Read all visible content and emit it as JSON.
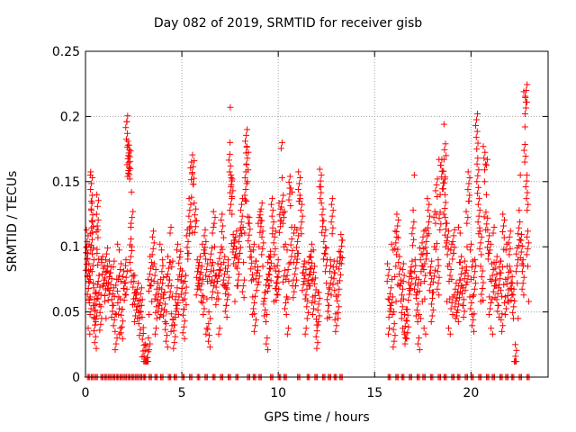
{
  "chart_data": {
    "type": "scatter",
    "title": "Day 082 of 2019, SRMTID for receiver gisb",
    "xlabel": "GPS time / hours",
    "ylabel": "SRMTID / TECUs",
    "xlim": [
      0,
      24
    ],
    "ylim": [
      0,
      0.25
    ],
    "x_ticks": [
      0,
      5,
      10,
      15,
      20
    ],
    "y_ticks": [
      0,
      0.05,
      0.1,
      0.15,
      0.2,
      0.25
    ],
    "x_tick_labels": [
      "0",
      "5",
      "10",
      "15",
      "20"
    ],
    "y_tick_labels": [
      "0",
      "0.05",
      "0.1",
      "0.15",
      "0.2",
      "0.25"
    ],
    "grid": true,
    "marker": "+",
    "color": "#ff0000",
    "series": [
      {
        "name": "SRMTID",
        "points": [
          [
            0.05,
            0.082
          ],
          [
            0.1,
            0.095
          ],
          [
            0.15,
            0.068
          ],
          [
            0.2,
            0.06
          ],
          [
            0.25,
            0.075
          ],
          [
            0.3,
            0.128
          ],
          [
            0.32,
            0.135
          ],
          [
            0.35,
            0.12
          ],
          [
            0.4,
            0.072
          ],
          [
            0.45,
            0.055
          ],
          [
            0.5,
            0.04
          ],
          [
            0.55,
            0.065
          ],
          [
            0.6,
            0.098
          ],
          [
            0.65,
            0.113
          ],
          [
            0.7,
            0.078
          ],
          [
            0.8,
            0.063
          ],
          [
            0.9,
            0.07
          ],
          [
            1.0,
            0.058
          ],
          [
            1.1,
            0.072
          ],
          [
            1.2,
            0.068
          ],
          [
            1.3,
            0.08
          ],
          [
            1.4,
            0.055
          ],
          [
            1.5,
            0.062
          ],
          [
            1.6,
            0.048
          ],
          [
            1.7,
            0.075
          ],
          [
            1.8,
            0.06
          ],
          [
            1.9,
            0.052
          ],
          [
            2.0,
            0.068
          ],
          [
            2.1,
            0.09
          ],
          [
            2.15,
            0.196
          ],
          [
            2.2,
            0.181
          ],
          [
            2.25,
            0.17
          ],
          [
            2.3,
            0.16
          ],
          [
            2.35,
            0.115
          ],
          [
            2.4,
            0.1
          ],
          [
            2.5,
            0.078
          ],
          [
            2.6,
            0.065
          ],
          [
            2.7,
            0.045
          ],
          [
            2.8,
            0.032
          ],
          [
            2.9,
            0.055
          ],
          [
            3.0,
            0.038
          ],
          [
            3.1,
            0.025
          ],
          [
            3.2,
            0.015
          ],
          [
            3.3,
            0.048
          ],
          [
            3.4,
            0.07
          ],
          [
            3.5,
            0.085
          ],
          [
            3.6,
            0.06
          ],
          [
            3.7,
            0.045
          ],
          [
            3.8,
            0.055
          ],
          [
            3.9,
            0.075
          ],
          [
            4.0,
            0.09
          ],
          [
            4.1,
            0.065
          ],
          [
            4.2,
            0.05
          ],
          [
            4.3,
            0.07
          ],
          [
            4.4,
            0.088
          ],
          [
            4.5,
            0.062
          ],
          [
            4.6,
            0.04
          ],
          [
            4.7,
            0.055
          ],
          [
            4.8,
            0.075
          ],
          [
            4.9,
            0.092
          ],
          [
            5.0,
            0.068
          ],
          [
            5.1,
            0.052
          ],
          [
            5.2,
            0.078
          ],
          [
            5.3,
            0.095
          ],
          [
            5.4,
            0.11
          ],
          [
            5.5,
            0.138
          ],
          [
            5.6,
            0.148
          ],
          [
            5.7,
            0.12
          ],
          [
            5.8,
            0.09
          ],
          [
            5.9,
            0.07
          ],
          [
            6.0,
            0.058
          ],
          [
            6.1,
            0.075
          ],
          [
            6.2,
            0.095
          ],
          [
            6.3,
            0.06
          ],
          [
            6.4,
            0.05
          ],
          [
            6.5,
            0.072
          ],
          [
            6.6,
            0.088
          ],
          [
            6.7,
            0.1
          ],
          [
            6.8,
            0.078
          ],
          [
            6.9,
            0.06
          ],
          [
            7.0,
            0.082
          ],
          [
            7.1,
            0.098
          ],
          [
            7.2,
            0.07
          ],
          [
            7.3,
            0.055
          ],
          [
            7.4,
            0.09
          ],
          [
            7.5,
            0.18
          ],
          [
            7.55,
            0.155
          ],
          [
            7.6,
            0.125
          ],
          [
            7.7,
            0.105
          ],
          [
            7.8,
            0.085
          ],
          [
            7.9,
            0.07
          ],
          [
            8.0,
            0.095
          ],
          [
            8.1,
            0.11
          ],
          [
            8.2,
            0.088
          ],
          [
            8.3,
            0.135
          ],
          [
            8.35,
            0.163
          ],
          [
            8.4,
            0.15
          ],
          [
            8.5,
            0.118
          ],
          [
            8.6,
            0.092
          ],
          [
            8.7,
            0.075
          ],
          [
            8.8,
            0.062
          ],
          [
            8.9,
            0.08
          ],
          [
            9.0,
            0.1
          ],
          [
            9.1,
            0.12
          ],
          [
            9.2,
            0.085
          ],
          [
            9.3,
            0.065
          ],
          [
            9.4,
            0.048
          ],
          [
            9.5,
            0.07
          ],
          [
            9.6,
            0.092
          ],
          [
            9.7,
            0.11
          ],
          [
            9.8,
            0.085
          ],
          [
            9.9,
            0.068
          ],
          [
            10.0,
            0.09
          ],
          [
            10.1,
            0.12
          ],
          [
            10.2,
            0.153
          ],
          [
            10.3,
            0.1
          ],
          [
            10.4,
            0.075
          ],
          [
            10.5,
            0.06
          ],
          [
            10.6,
            0.145
          ],
          [
            10.7,
            0.115
          ],
          [
            10.8,
            0.088
          ],
          [
            10.9,
            0.07
          ],
          [
            11.0,
            0.095
          ],
          [
            11.1,
            0.135
          ],
          [
            11.2,
            0.11
          ],
          [
            11.3,
            0.08
          ],
          [
            11.4,
            0.06
          ],
          [
            11.5,
            0.045
          ],
          [
            11.6,
            0.07
          ],
          [
            11.7,
            0.092
          ],
          [
            11.8,
            0.075
          ],
          [
            11.9,
            0.058
          ],
          [
            12.0,
            0.04
          ],
          [
            12.1,
            0.065
          ],
          [
            12.2,
            0.146
          ],
          [
            12.3,
            0.12
          ],
          [
            12.4,
            0.095
          ],
          [
            12.5,
            0.072
          ],
          [
            12.6,
            0.055
          ],
          [
            12.7,
            0.09
          ],
          [
            12.8,
            0.11
          ],
          [
            12.9,
            0.08
          ],
          [
            13.0,
            0.062
          ],
          [
            13.1,
            0.045
          ],
          [
            13.2,
            0.092
          ],
          [
            13.3,
            0.105
          ],
          [
            15.7,
            0.06
          ],
          [
            15.8,
            0.055
          ],
          [
            15.9,
            0.075
          ],
          [
            16.0,
            0.05
          ],
          [
            16.1,
            0.085
          ],
          [
            16.2,
            0.098
          ],
          [
            16.3,
            0.07
          ],
          [
            16.4,
            0.045
          ],
          [
            16.5,
            0.06
          ],
          [
            16.6,
            0.03
          ],
          [
            16.7,
            0.052
          ],
          [
            16.8,
            0.068
          ],
          [
            16.9,
            0.08
          ],
          [
            17.0,
            0.128
          ],
          [
            17.1,
            0.09
          ],
          [
            17.2,
            0.065
          ],
          [
            17.3,
            0.048
          ],
          [
            17.4,
            0.072
          ],
          [
            17.5,
            0.085
          ],
          [
            17.6,
            0.06
          ],
          [
            17.7,
            0.095
          ],
          [
            17.8,
            0.11
          ],
          [
            17.9,
            0.08
          ],
          [
            18.0,
            0.065
          ],
          [
            18.1,
            0.1
          ],
          [
            18.2,
            0.125
          ],
          [
            18.3,
            0.09
          ],
          [
            18.4,
            0.14
          ],
          [
            18.5,
            0.158
          ],
          [
            18.6,
            0.167
          ],
          [
            18.65,
            0.152
          ],
          [
            18.7,
            0.118
          ],
          [
            18.8,
            0.085
          ],
          [
            18.9,
            0.06
          ],
          [
            19.0,
            0.075
          ],
          [
            19.1,
            0.095
          ],
          [
            19.2,
            0.045
          ],
          [
            19.3,
            0.065
          ],
          [
            19.4,
            0.088
          ],
          [
            19.5,
            0.07
          ],
          [
            19.6,
            0.055
          ],
          [
            19.7,
            0.08
          ],
          [
            19.8,
            0.1
          ],
          [
            19.9,
            0.135
          ],
          [
            20.0,
            0.075
          ],
          [
            20.1,
            0.062
          ],
          [
            20.2,
            0.09
          ],
          [
            20.3,
            0.175
          ],
          [
            20.35,
            0.168
          ],
          [
            20.4,
            0.11
          ],
          [
            20.5,
            0.085
          ],
          [
            20.6,
            0.068
          ],
          [
            20.7,
            0.15
          ],
          [
            20.8,
            0.14
          ],
          [
            20.9,
            0.095
          ],
          [
            21.0,
            0.075
          ],
          [
            21.1,
            0.06
          ],
          [
            21.2,
            0.088
          ],
          [
            21.3,
            0.07
          ],
          [
            21.4,
            0.055
          ],
          [
            21.5,
            0.08
          ],
          [
            21.6,
            0.062
          ],
          [
            21.7,
            0.098
          ],
          [
            21.8,
            0.075
          ],
          [
            21.9,
            0.058
          ],
          [
            22.0,
            0.085
          ],
          [
            22.1,
            0.068
          ],
          [
            22.2,
            0.045
          ],
          [
            22.3,
            0.025
          ],
          [
            22.4,
            0.072
          ],
          [
            22.5,
            0.128
          ],
          [
            22.6,
            0.105
          ],
          [
            22.7,
            0.09
          ],
          [
            22.8,
            0.192
          ],
          [
            22.85,
            0.211
          ],
          [
            22.9,
            0.155
          ],
          [
            22.95,
            0.085
          ]
        ]
      }
    ],
    "zero_points_x": [
      0.1,
      0.3,
      0.5,
      0.8,
      1.0,
      1.2,
      1.4,
      1.6,
      1.8,
      2.0,
      2.2,
      2.4,
      2.6,
      2.8,
      3.0,
      3.3,
      3.6,
      3.9,
      4.3,
      4.6,
      5.0,
      5.4,
      5.8,
      6.2,
      6.6,
      7.0,
      7.4,
      7.8,
      8.4,
      8.7,
      9.0,
      9.6,
      10.0,
      10.3,
      11.0,
      11.5,
      11.9,
      12.3,
      12.6,
      12.9,
      13.2,
      15.7,
      16.1,
      16.4,
      16.8,
      17.2,
      17.5,
      17.9,
      18.3,
      18.6,
      19.0,
      19.3,
      19.7,
      20.0,
      20.4,
      20.8,
      21.1,
      21.5,
      21.8,
      22.1,
      22.5,
      22.9
    ]
  }
}
